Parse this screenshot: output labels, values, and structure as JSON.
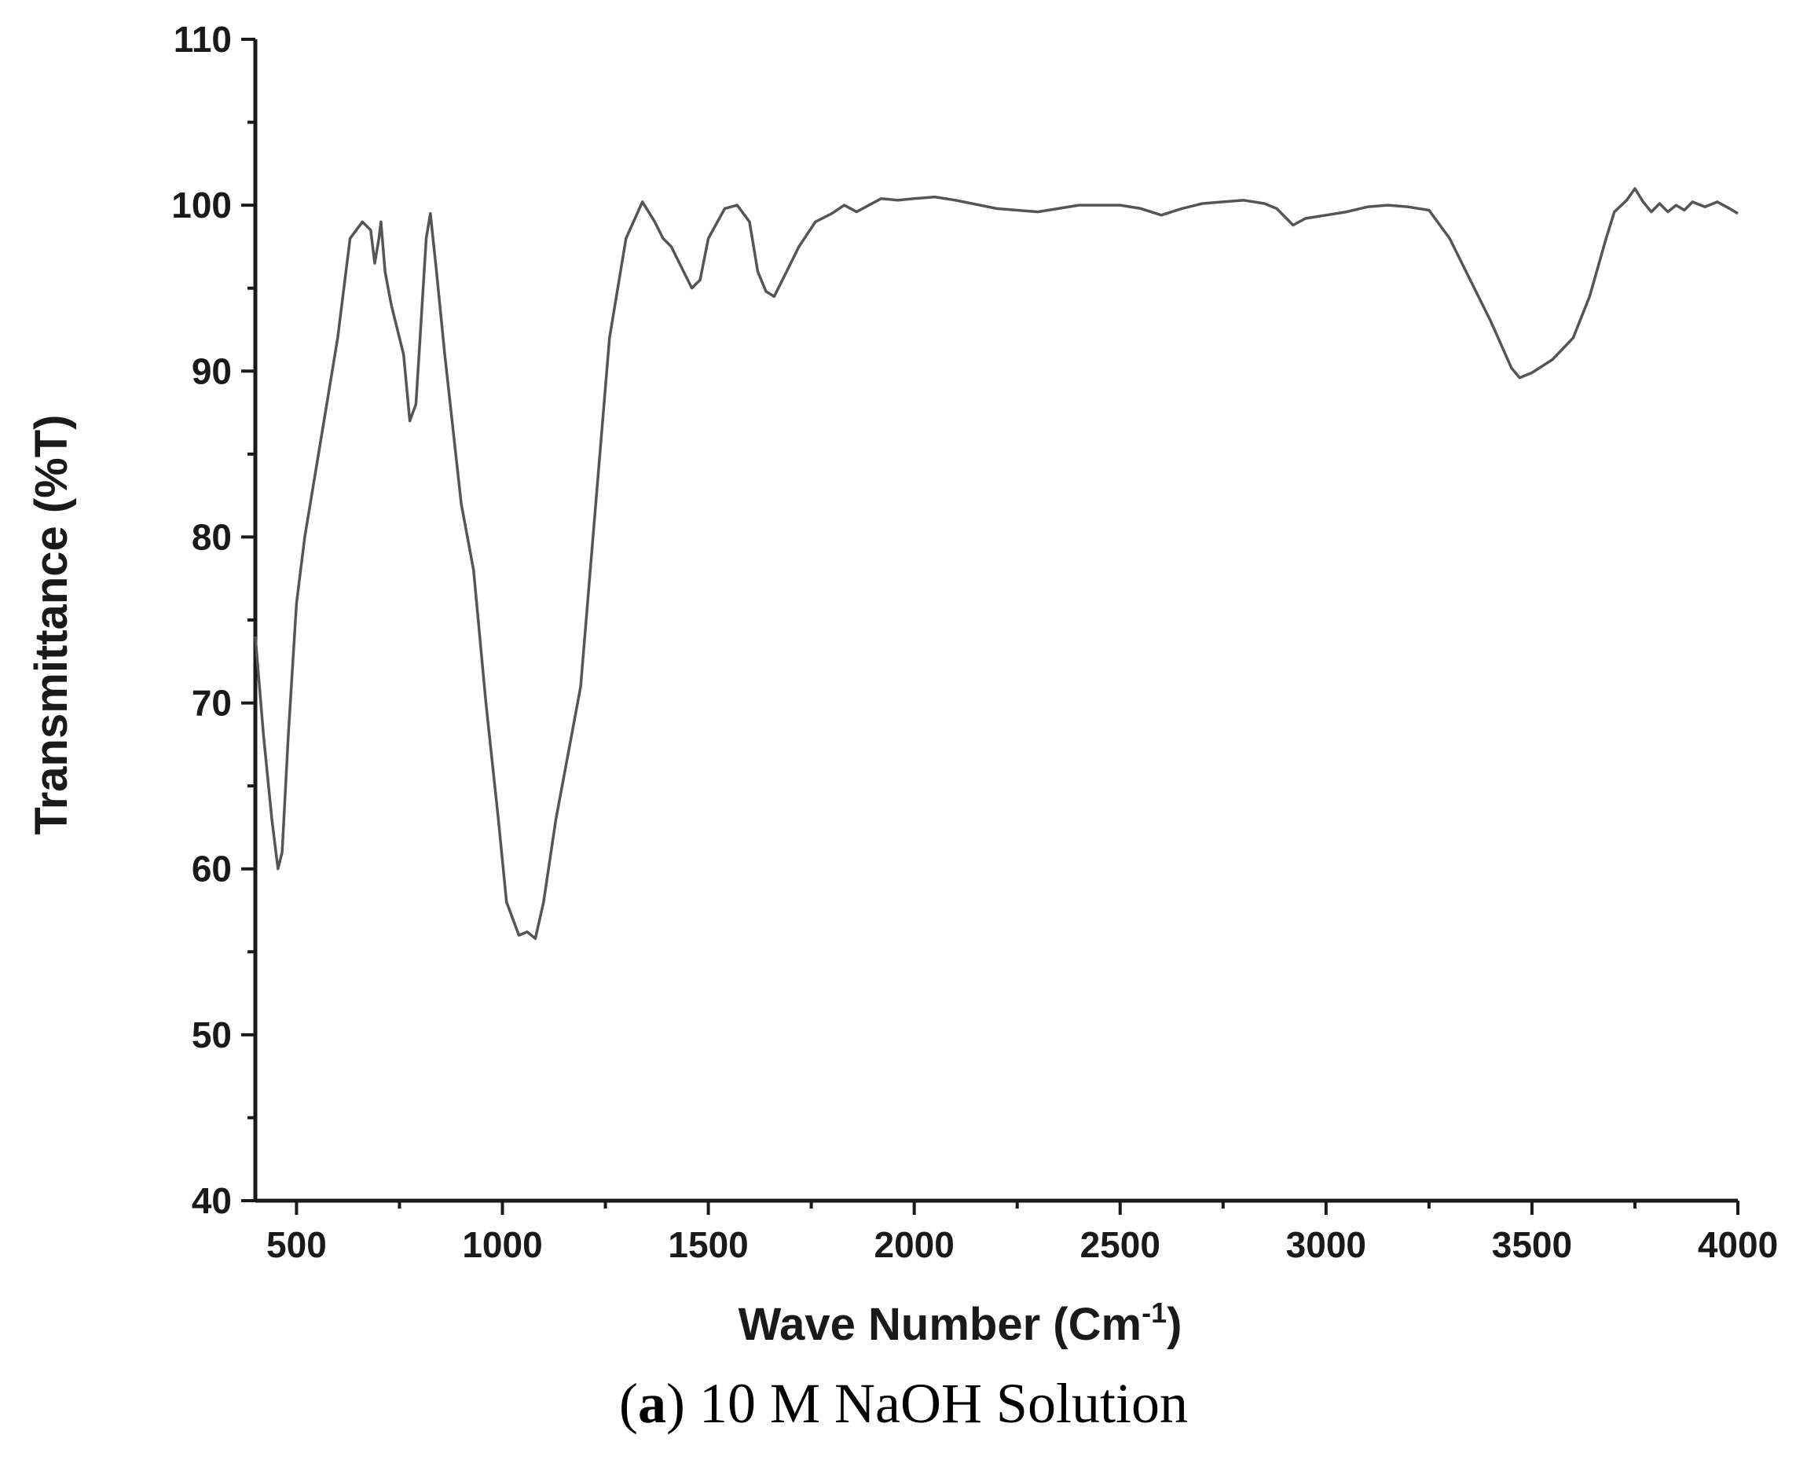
{
  "caption": {
    "prefix_open": "(",
    "prefix_letter": "a",
    "prefix_close": ")",
    "text": " 10 M NaOH Solution"
  },
  "chart_data": {
    "type": "line",
    "xlabel": "Wave Number (Cm",
    "xlabel_sup": "-1",
    "xlabel_close": ")",
    "ylabel": "Transmittance (%T)",
    "xlim": [
      400,
      4000
    ],
    "ylim": [
      40,
      110
    ],
    "x_ticks": [
      500,
      1000,
      1500,
      2000,
      2500,
      3000,
      3500,
      4000
    ],
    "y_ticks": [
      40,
      50,
      60,
      70,
      80,
      90,
      100,
      110
    ],
    "line_color": "#555555",
    "axis_color": "#1a1a1a",
    "series": [
      {
        "points": [
          [
            400,
            74
          ],
          [
            420,
            68
          ],
          [
            440,
            63
          ],
          [
            455,
            60
          ],
          [
            465,
            61
          ],
          [
            480,
            68
          ],
          [
            500,
            76
          ],
          [
            520,
            80
          ],
          [
            560,
            86
          ],
          [
            600,
            92
          ],
          [
            630,
            98
          ],
          [
            660,
            99
          ],
          [
            680,
            98.5
          ],
          [
            690,
            96.5
          ],
          [
            700,
            98
          ],
          [
            705,
            99
          ],
          [
            715,
            96
          ],
          [
            730,
            94
          ],
          [
            760,
            91
          ],
          [
            775,
            87
          ],
          [
            790,
            88
          ],
          [
            800,
            92
          ],
          [
            815,
            98
          ],
          [
            825,
            99.5
          ],
          [
            840,
            96
          ],
          [
            860,
            91
          ],
          [
            900,
            82
          ],
          [
            930,
            78
          ],
          [
            960,
            70
          ],
          [
            990,
            63
          ],
          [
            1010,
            58
          ],
          [
            1040,
            56
          ],
          [
            1060,
            56.2
          ],
          [
            1080,
            55.8
          ],
          [
            1100,
            58
          ],
          [
            1130,
            63
          ],
          [
            1160,
            67
          ],
          [
            1190,
            71
          ],
          [
            1220,
            80
          ],
          [
            1260,
            92
          ],
          [
            1300,
            98
          ],
          [
            1340,
            100.2
          ],
          [
            1370,
            99
          ],
          [
            1390,
            98
          ],
          [
            1410,
            97.5
          ],
          [
            1440,
            96
          ],
          [
            1460,
            95
          ],
          [
            1480,
            95.5
          ],
          [
            1500,
            98
          ],
          [
            1540,
            99.8
          ],
          [
            1570,
            100
          ],
          [
            1600,
            99
          ],
          [
            1620,
            96
          ],
          [
            1640,
            94.8
          ],
          [
            1660,
            94.5
          ],
          [
            1690,
            96
          ],
          [
            1720,
            97.5
          ],
          [
            1760,
            99
          ],
          [
            1800,
            99.5
          ],
          [
            1830,
            100
          ],
          [
            1860,
            99.6
          ],
          [
            1890,
            100
          ],
          [
            1920,
            100.4
          ],
          [
            1960,
            100.3
          ],
          [
            2000,
            100.4
          ],
          [
            2050,
            100.5
          ],
          [
            2100,
            100.3
          ],
          [
            2200,
            99.8
          ],
          [
            2300,
            99.6
          ],
          [
            2350,
            99.8
          ],
          [
            2400,
            100
          ],
          [
            2450,
            100
          ],
          [
            2500,
            100
          ],
          [
            2550,
            99.8
          ],
          [
            2600,
            99.4
          ],
          [
            2650,
            99.8
          ],
          [
            2700,
            100.1
          ],
          [
            2750,
            100.2
          ],
          [
            2800,
            100.3
          ],
          [
            2850,
            100.1
          ],
          [
            2880,
            99.8
          ],
          [
            2920,
            98.8
          ],
          [
            2950,
            99.2
          ],
          [
            3000,
            99.4
          ],
          [
            3050,
            99.6
          ],
          [
            3100,
            99.9
          ],
          [
            3150,
            100
          ],
          [
            3200,
            99.9
          ],
          [
            3250,
            99.7
          ],
          [
            3300,
            98
          ],
          [
            3350,
            95.5
          ],
          [
            3400,
            93
          ],
          [
            3450,
            90.2
          ],
          [
            3470,
            89.6
          ],
          [
            3500,
            89.9
          ],
          [
            3550,
            90.7
          ],
          [
            3600,
            92
          ],
          [
            3640,
            94.5
          ],
          [
            3680,
            98
          ],
          [
            3700,
            99.6
          ],
          [
            3730,
            100.3
          ],
          [
            3750,
            101
          ],
          [
            3770,
            100.2
          ],
          [
            3790,
            99.6
          ],
          [
            3810,
            100.1
          ],
          [
            3830,
            99.6
          ],
          [
            3850,
            100
          ],
          [
            3870,
            99.7
          ],
          [
            3890,
            100.2
          ],
          [
            3920,
            99.9
          ],
          [
            3950,
            100.2
          ],
          [
            3980,
            99.8
          ],
          [
            4000,
            99.5
          ]
        ]
      }
    ]
  }
}
